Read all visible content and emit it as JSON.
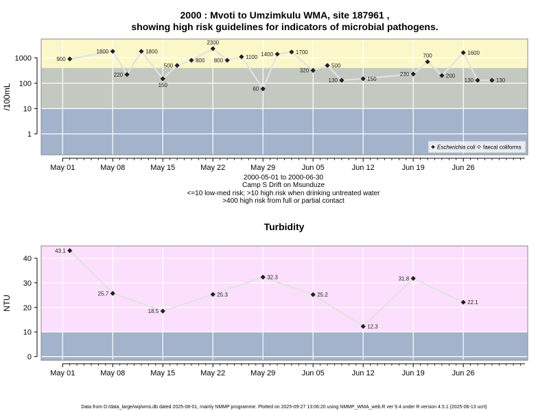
{
  "chart_data": [
    {
      "type": "line",
      "title_line1": "2000 : Mvoti to Umzimkulu WMA, site 187961 ,",
      "title_line2": "showing high risk guidelines for indicators of microbial pathogens.",
      "ylabel": "/100mL",
      "yscale": "log",
      "ylim": [
        0.15,
        5500
      ],
      "y_ticks": [
        1,
        10,
        100,
        1000
      ],
      "y_tick_labels": [
        "1",
        "10",
        "100",
        "1000"
      ],
      "xlim": [
        "2000-04-28",
        "2000-07-05"
      ],
      "x_ticks": [
        "2000-05-01",
        "2000-05-08",
        "2000-05-15",
        "2000-05-22",
        "2000-05-29",
        "2000-06-05",
        "2000-06-12",
        "2000-06-19",
        "2000-06-26"
      ],
      "x_tick_labels": [
        "May 01",
        "May 08",
        "May 15",
        "May 22",
        "May 29",
        "Jun 05",
        "Jun 12",
        "Jun 19",
        "Jun 26"
      ],
      "bands": [
        {
          "from": 0.15,
          "to": 10,
          "color": "#a2b3cb"
        },
        {
          "from": 10,
          "to": 400,
          "color": "#c3c9c0"
        },
        {
          "from": 400,
          "to": 5500,
          "color": "#fbf7c9"
        }
      ],
      "grid": true,
      "legend_position": "bottom-right",
      "legend": [
        {
          "label": "Escherichia coli",
          "italic": true,
          "marker": "filled-diamond"
        },
        {
          "label": "faecal coliforms",
          "italic": false,
          "marker": "open-diamond"
        }
      ],
      "series": [
        {
          "name": "Escherichia coli",
          "x": [
            "2000-05-02",
            "2000-05-08",
            "2000-05-10",
            "2000-05-12",
            "2000-05-15",
            "2000-05-17",
            "2000-05-19",
            "2000-05-22",
            "2000-05-24",
            "2000-05-26",
            "2000-05-29",
            "2000-05-31",
            "2000-06-02",
            "2000-06-05",
            "2000-06-07",
            "2000-06-09",
            "2000-06-12",
            "2000-06-19",
            "2000-06-21",
            "2000-06-23",
            "2000-06-26",
            "2000-06-28",
            "2000-06-30"
          ],
          "values": [
            900,
            1800,
            220,
            1800,
            150,
            500,
            800,
            2300,
            800,
            1100,
            60,
            1400,
            1700,
            320,
            500,
            130,
            150,
            230,
            700,
            200,
            1600,
            130,
            130
          ],
          "labels": [
            "900",
            "1800",
            "220",
            "1800",
            "150",
            "500",
            "800",
            "2300",
            "800",
            "1100",
            "60",
            "1400",
            "1700",
            "320",
            "500",
            "130",
            "150",
            "230",
            "700",
            "200",
            "1600",
            "130",
            "130"
          ],
          "label_sides": [
            "left",
            "left",
            "left",
            "right",
            "below",
            "left",
            "right",
            "above",
            "left",
            "right",
            "left",
            "left",
            "right",
            "left",
            "right",
            "left",
            "right",
            "left",
            "above",
            "right",
            "right",
            "left",
            "right"
          ]
        }
      ],
      "info_lines": [
        "2000-05-01 to 2000-06-30",
        "Camp S Drift on Msunduze",
        "<=10 low-med risk; >10 high risk when drinking untreated water",
        ">400 high risk from full or partial contact"
      ]
    },
    {
      "type": "line",
      "title": "Turbidity",
      "ylabel": "NTU",
      "ylim": [
        -1.5,
        45
      ],
      "y_ticks": [
        0,
        10,
        20,
        30,
        40
      ],
      "y_tick_labels": [
        "0",
        "10",
        "20",
        "30",
        "40"
      ],
      "xlim": [
        "2000-04-28",
        "2000-07-05"
      ],
      "x_ticks": [
        "2000-05-01",
        "2000-05-08",
        "2000-05-15",
        "2000-05-22",
        "2000-05-29",
        "2000-06-05",
        "2000-06-12",
        "2000-06-19",
        "2000-06-26"
      ],
      "x_tick_labels": [
        "May 01",
        "May 08",
        "May 15",
        "May 22",
        "May 29",
        "Jun 05",
        "Jun 12",
        "Jun 19",
        "Jun 26"
      ],
      "bands": [
        {
          "from": -1.5,
          "to": 10,
          "color": "#a2b3cb"
        },
        {
          "from": 10,
          "to": 45,
          "color": "#fcdffc"
        }
      ],
      "grid": true,
      "series": [
        {
          "x": [
            "2000-05-02",
            "2000-05-08",
            "2000-05-15",
            "2000-05-22",
            "2000-05-29",
            "2000-06-05",
            "2000-06-12",
            "2000-06-19",
            "2000-06-26"
          ],
          "values": [
            43.1,
            25.7,
            18.5,
            25.3,
            32.3,
            25.2,
            12.3,
            31.8,
            22.1
          ],
          "labels": [
            "43.1",
            "25.7",
            "18.5",
            "25.3",
            "32.3",
            "25.2",
            "12.3",
            "31.8",
            "22.1"
          ],
          "label_sides": [
            "left",
            "left",
            "left",
            "right",
            "right",
            "right",
            "right",
            "left",
            "right"
          ]
        }
      ]
    }
  ],
  "footer": "Data from D:/data_large/wq/wms.db dated 2025-08-01, mainly NMMP programme. Plotted on 2025-09-27 13:06:20 using NMMP_WMA_web.R ver 9.4 under R version 4.5.1 (2025-06-13 ucrt)"
}
